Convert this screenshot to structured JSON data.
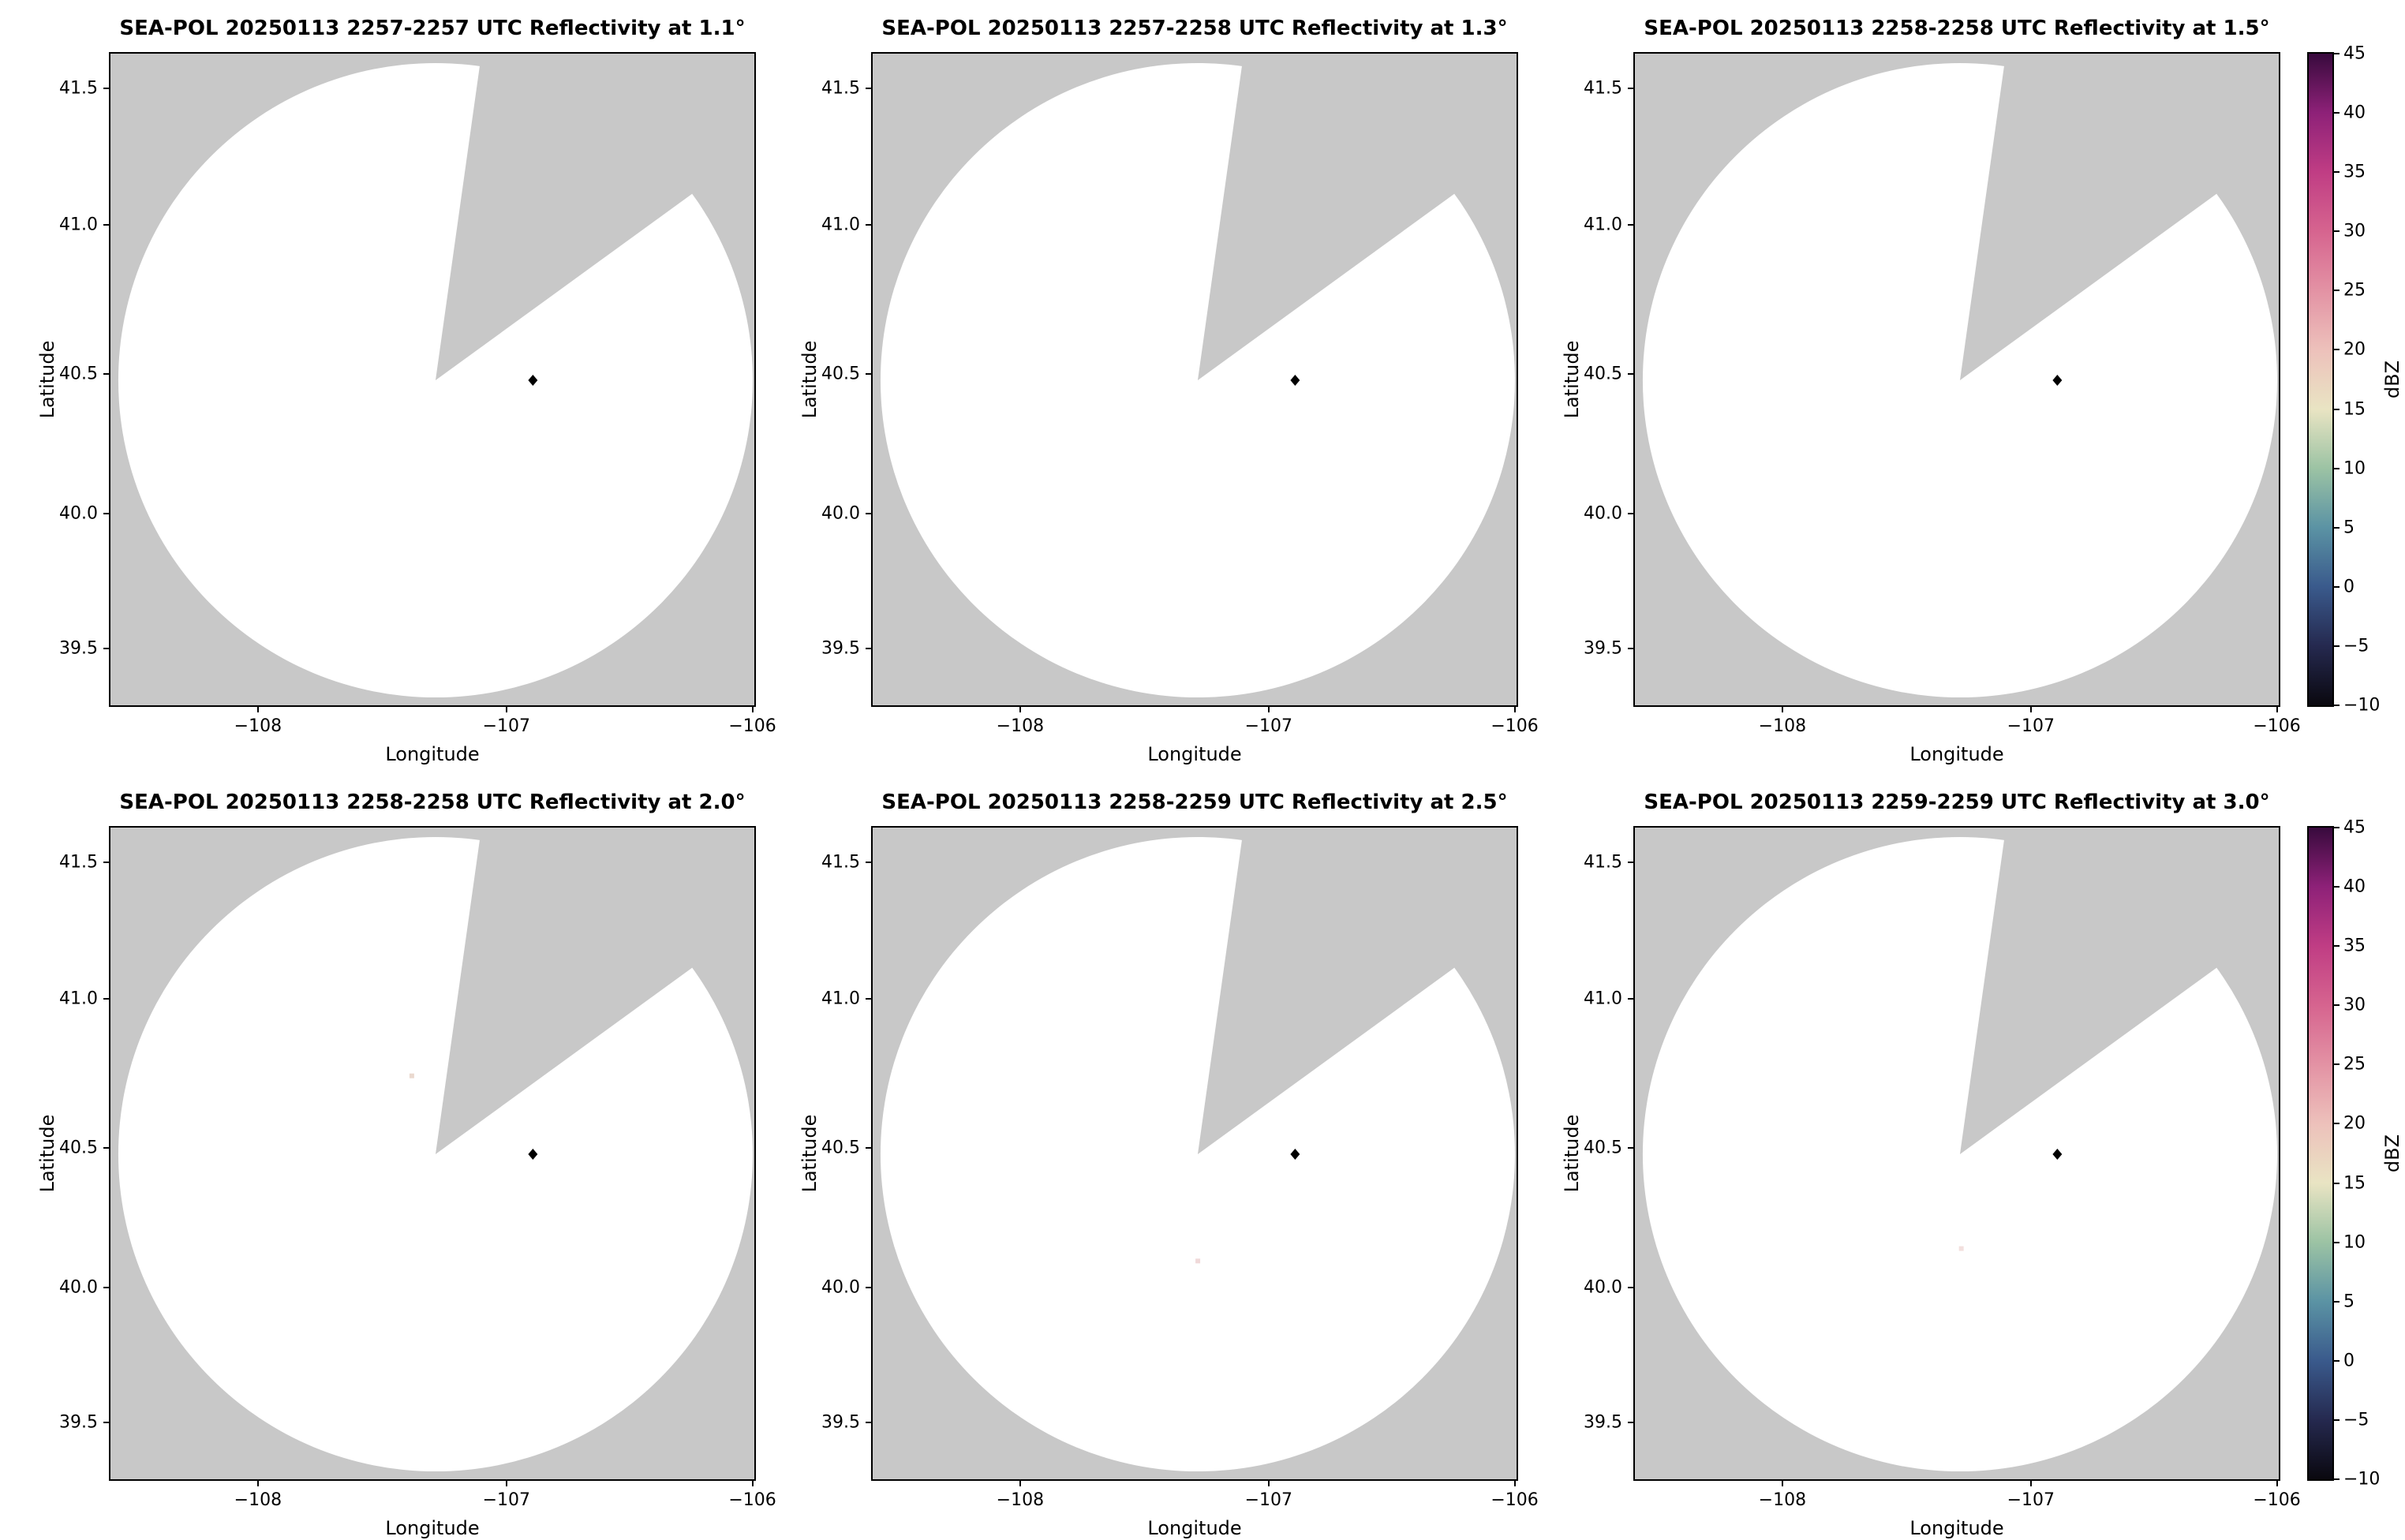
{
  "figure": {
    "description": "2x3 grid of SEA-POL radar PPI reflectivity scans, each nearly echo-free, with shared dBZ colorbars per row",
    "background_color": "#ffffff",
    "plot_background_color": "#c8c8c8",
    "coverage_color": "#ffffff",
    "marker_color": "#000000"
  },
  "axes": {
    "xlabel": "Longitude",
    "ylabel": "Latitude",
    "x_ticks": [
      {
        "label": "−108",
        "f": 0.229
      },
      {
        "label": "−107",
        "f": 0.615
      },
      {
        "label": "−106",
        "f": 0.997
      }
    ],
    "y_ticks": [
      {
        "label": "41.5",
        "f": 0.053
      },
      {
        "label": "41.0",
        "f": 0.263
      },
      {
        "label": "40.5",
        "f": 0.492
      },
      {
        "label": "40.0",
        "f": 0.706
      },
      {
        "label": "39.5",
        "f": 0.913
      }
    ]
  },
  "colorbar": {
    "label": "dBZ",
    "vmin": -10,
    "vmax": 45,
    "ticks": [
      {
        "label": "45",
        "value": 45
      },
      {
        "label": "40",
        "value": 40
      },
      {
        "label": "35",
        "value": 35
      },
      {
        "label": "30",
        "value": 30
      },
      {
        "label": "25",
        "value": 25
      },
      {
        "label": "20",
        "value": 20
      },
      {
        "label": "15",
        "value": 15
      },
      {
        "label": "10",
        "value": 10
      },
      {
        "label": "5",
        "value": 5
      },
      {
        "label": "0",
        "value": 0
      },
      {
        "label": "−5",
        "value": -5
      },
      {
        "label": "−10",
        "value": -10
      }
    ],
    "stops": [
      {
        "value": 45,
        "color": "#380a3d"
      },
      {
        "value": 40,
        "color": "#8e2178"
      },
      {
        "value": 35,
        "color": "#c03d84"
      },
      {
        "value": 30,
        "color": "#d6648f"
      },
      {
        "value": 25,
        "color": "#e392a4"
      },
      {
        "value": 20,
        "color": "#edc1bb"
      },
      {
        "value": 15,
        "color": "#e9e4c3"
      },
      {
        "value": 10,
        "color": "#9cc3a4"
      },
      {
        "value": 5,
        "color": "#5b93a4"
      },
      {
        "value": 0,
        "color": "#3a5a8c"
      },
      {
        "value": -5,
        "color": "#25294f"
      },
      {
        "value": -10,
        "color": "#0a080f"
      }
    ]
  },
  "panels": [
    {
      "title": "SEA-POL 20250113 2257-2257 UTC Reflectivity at 1.1°",
      "date": "20250113",
      "time_utc": "2257-2257",
      "elevation": "1.1°",
      "echoes": []
    },
    {
      "title": "SEA-POL 20250113 2257-2258 UTC Reflectivity at 1.3°",
      "date": "20250113",
      "time_utc": "2257-2258",
      "elevation": "1.3°",
      "echoes": []
    },
    {
      "title": "SEA-POL 20250113 2258-2258 UTC Reflectivity at 1.5°",
      "date": "20250113",
      "time_utc": "2258-2258",
      "elevation": "1.5°",
      "echoes": []
    },
    {
      "title": "SEA-POL 20250113 2258-2258 UTC Reflectivity at 2.0°",
      "date": "20250113",
      "time_utc": "2258-2258",
      "elevation": "2.0°",
      "echoes": [
        {
          "fx": 0.468,
          "fy": 0.381,
          "color": "#ead9cf"
        }
      ]
    },
    {
      "title": "SEA-POL 20250113 2258-2259 UTC Reflectivity at 2.5°",
      "date": "20250113",
      "time_utc": "2258-2259",
      "elevation": "2.5°",
      "echoes": [
        {
          "fx": 0.505,
          "fy": 0.665,
          "color": "#f0d9d9"
        }
      ]
    },
    {
      "title": "SEA-POL 20250113 2259-2259 UTC Reflectivity at 3.0°",
      "date": "20250113",
      "time_utc": "2259-2259",
      "elevation": "3.0°",
      "echoes": [
        {
          "fx": 0.507,
          "fy": 0.646,
          "color": "#f3e0de"
        }
      ]
    }
  ],
  "chart_data": {
    "type": "heatmap",
    "subtype": "radar-ppi-reflectivity",
    "grid": {
      "rows": 2,
      "cols": 3
    },
    "panels": [
      {
        "title": "SEA-POL 20250113 2257-2257 UTC Reflectivity at 1.1°",
        "elevation_deg": 1.1,
        "time_utc": "2257-2257",
        "echoes": "none visible"
      },
      {
        "title": "SEA-POL 20250113 2257-2258 UTC Reflectivity at 1.3°",
        "elevation_deg": 1.3,
        "time_utc": "2257-2258",
        "echoes": "none visible"
      },
      {
        "title": "SEA-POL 20250113 2258-2258 UTC Reflectivity at 1.5°",
        "elevation_deg": 1.5,
        "time_utc": "2258-2258",
        "echoes": "none visible"
      },
      {
        "title": "SEA-POL 20250113 2258-2258 UTC Reflectivity at 2.0°",
        "elevation_deg": 2.0,
        "time_utc": "2258-2258",
        "echoes": "single faint low-dBZ speck near lon −107.4, lat 40.73"
      },
      {
        "title": "SEA-POL 20250113 2258-2259 UTC Reflectivity at 2.5°",
        "elevation_deg": 2.5,
        "time_utc": "2258-2259",
        "echoes": "single faint low-dBZ speck near lon −107.2, lat 40.08"
      },
      {
        "title": "SEA-POL 20250113 2259-2259 UTC Reflectivity at 3.0°",
        "elevation_deg": 3.0,
        "time_utc": "2259-2259",
        "echoes": "single faint low-dBZ speck near lon −107.2, lat 40.1"
      }
    ],
    "x_axis": {
      "label": "Longitude",
      "ticks": [
        -108,
        -107,
        -106
      ],
      "range": [
        -108.6,
        -106.0
      ]
    },
    "y_axis": {
      "label": "Latitude",
      "ticks": [
        41.5,
        41.0,
        40.5,
        40.0,
        39.5
      ],
      "range": [
        39.3,
        41.62
      ]
    },
    "colorbar": {
      "label": "dBZ",
      "min": -10,
      "max": 45,
      "tick_step": 5,
      "colormap": "dark purple-magenta-pink-cream-green-blue-black spectral ramp"
    },
    "coverage": {
      "center_lon": -107.28,
      "center_lat": 40.48,
      "radius_deg": 1.28,
      "fill": "white (no echo)",
      "outside": "gray (no coverage)",
      "blocked_sector_azimuth_deg": [
        8,
        54
      ]
    },
    "site_marker": {
      "shape": "black diamond",
      "lon": -106.89,
      "lat": 40.48
    }
  }
}
